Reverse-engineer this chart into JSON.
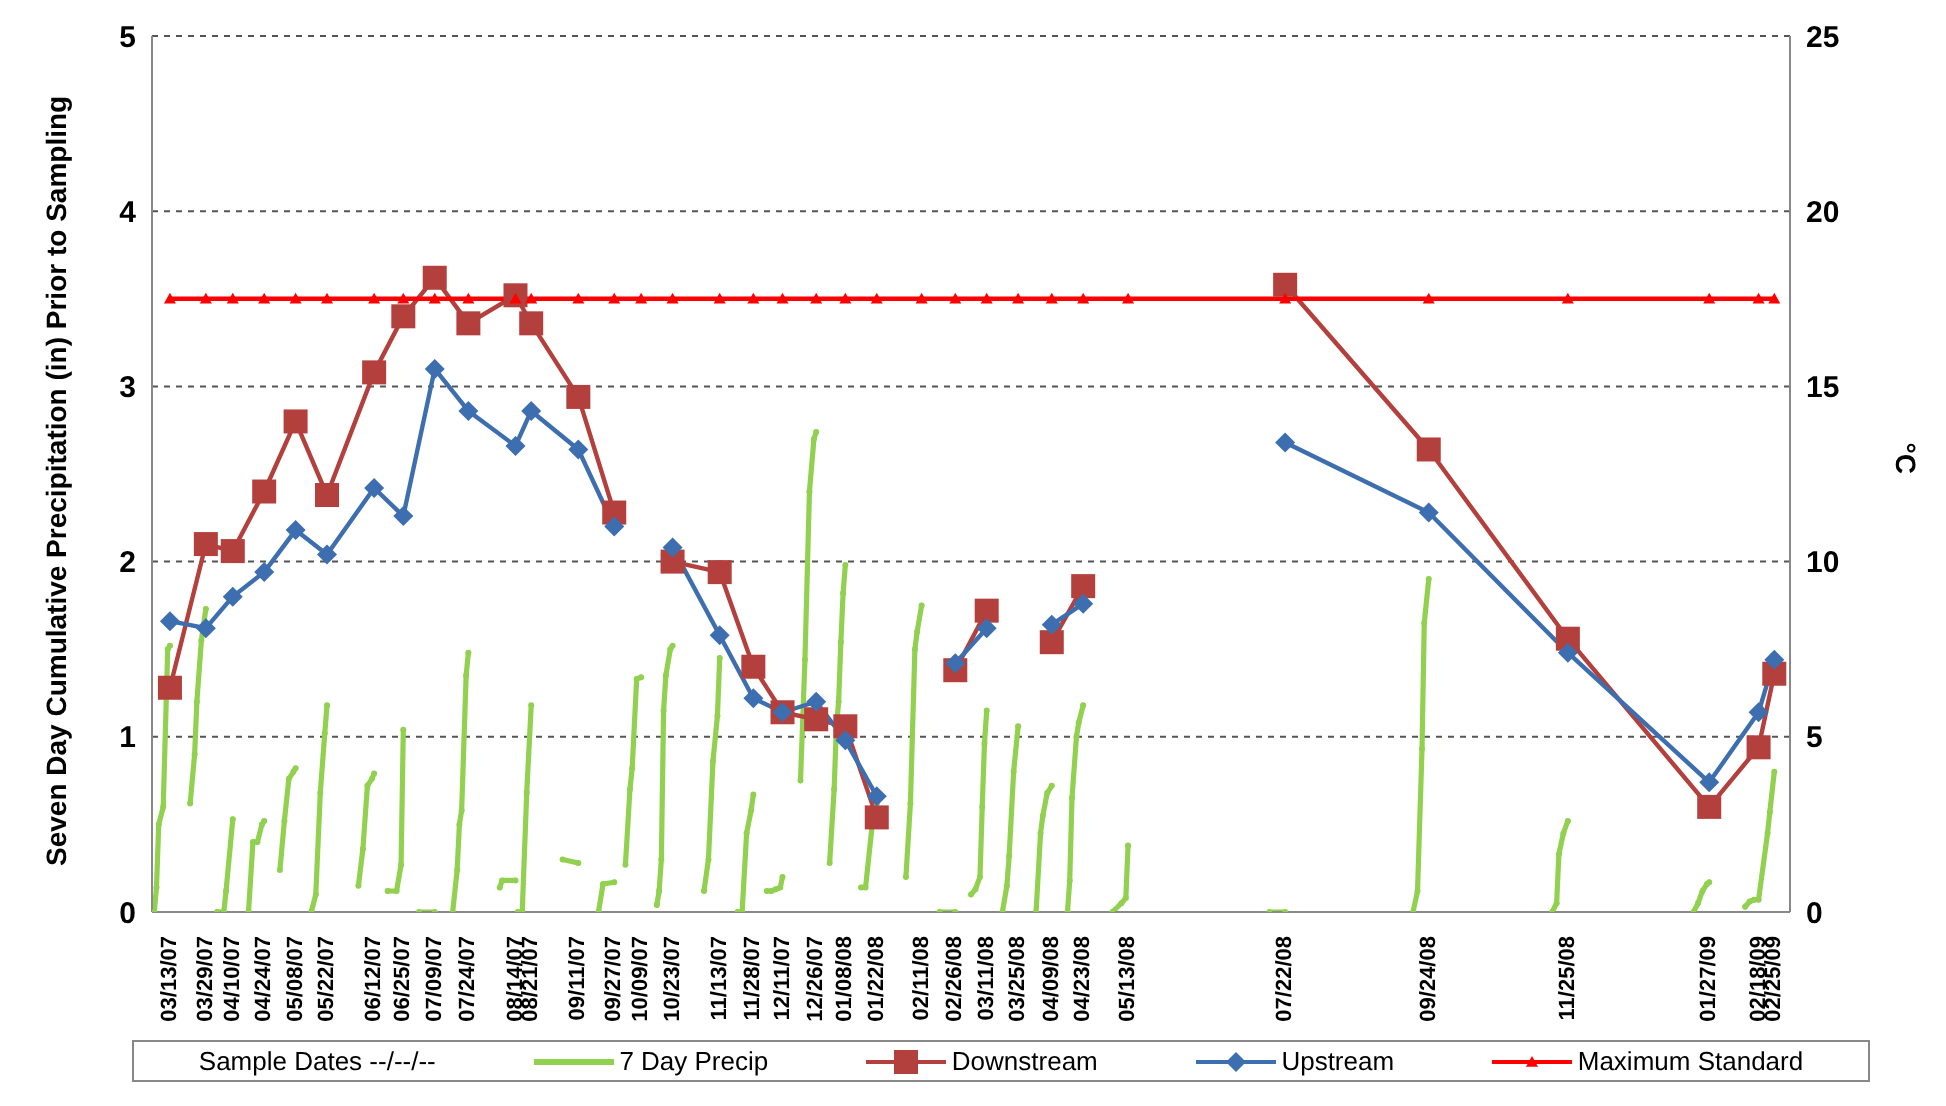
{
  "chart_data": {
    "type": "line",
    "ylabel": "Seven Day Cumulative Precipitation (in) Prior to Sampling",
    "y2label": "°C",
    "xlabel": "Sample Dates --/--/--",
    "x": [
      "2007-03-13",
      "2007-03-29",
      "2007-04-10",
      "2007-04-24",
      "2007-05-08",
      "2007-05-22",
      "2007-06-12",
      "2007-06-25",
      "2007-07-09",
      "2007-07-24",
      "2007-08-14",
      "2007-08-21",
      "2007-09-11",
      "2007-09-27",
      "2007-10-09",
      "2007-10-23",
      "2007-11-13",
      "2007-11-28",
      "2007-12-11",
      "2007-12-26",
      "2008-01-08",
      "2008-01-22",
      "2008-02-11",
      "2008-02-26",
      "2008-03-11",
      "2008-03-25",
      "2008-04-09",
      "2008-04-23",
      "2008-05-13",
      "2008-07-22",
      "2008-09-24",
      "2008-11-25",
      "2009-01-27",
      "2009-02-18",
      "2009-02-25"
    ],
    "xlim": [
      "2007-03-05",
      "2009-03-04"
    ],
    "xticks": [
      {
        "value": "2007-03-13",
        "label": "03/13/07"
      },
      {
        "value": "2007-03-29",
        "label": "03/29/07"
      },
      {
        "value": "2007-04-10",
        "label": "04/10/07"
      },
      {
        "value": "2007-04-24",
        "label": "04/24/07"
      },
      {
        "value": "2007-05-08",
        "label": "05/08/07"
      },
      {
        "value": "2007-05-22",
        "label": "05/22/07"
      },
      {
        "value": "2007-06-12",
        "label": "06/12/07"
      },
      {
        "value": "2007-06-25",
        "label": "06/25/07"
      },
      {
        "value": "2007-07-09",
        "label": "07/09/07"
      },
      {
        "value": "2007-07-24",
        "label": "07/24/07"
      },
      {
        "value": "2007-08-14",
        "label": "08/14/07"
      },
      {
        "value": "2007-08-21",
        "label": "08/21/07"
      },
      {
        "value": "2007-09-11",
        "label": "09/11/07"
      },
      {
        "value": "2007-09-27",
        "label": "09/27/07"
      },
      {
        "value": "2007-10-09",
        "label": "10/09/07"
      },
      {
        "value": "2007-10-23",
        "label": "10/23/07"
      },
      {
        "value": "2007-11-13",
        "label": "11/13/07"
      },
      {
        "value": "2007-11-28",
        "label": "11/28/07"
      },
      {
        "value": "2007-12-11",
        "label": "12/11/07"
      },
      {
        "value": "2007-12-26",
        "label": "12/26/07"
      },
      {
        "value": "2008-01-08",
        "label": "01/08/08"
      },
      {
        "value": "2008-01-22",
        "label": "01/22/08"
      },
      {
        "value": "2008-02-11",
        "label": "02/11/08"
      },
      {
        "value": "2008-02-26",
        "label": "02/26/08"
      },
      {
        "value": "2008-03-11",
        "label": "03/11/08"
      },
      {
        "value": "2008-03-25",
        "label": "03/25/08"
      },
      {
        "value": "2008-04-09",
        "label": "04/09/08"
      },
      {
        "value": "2008-04-23",
        "label": "04/23/08"
      },
      {
        "value": "2008-05-13",
        "label": "05/13/08"
      },
      {
        "value": "2008-07-22",
        "label": "07/22/08"
      },
      {
        "value": "2008-09-24",
        "label": "09/24/08"
      },
      {
        "value": "2008-11-25",
        "label": "11/25/08"
      },
      {
        "value": "2009-01-27",
        "label": "01/27/09"
      },
      {
        "value": "2009-02-18",
        "label": "02/18/09"
      },
      {
        "value": "2009-02-25",
        "label": "02/25/09"
      }
    ],
    "ylim": [
      0,
      5
    ],
    "yticks": [
      0,
      1,
      2,
      3,
      4,
      5
    ],
    "y2lim": [
      0,
      25
    ],
    "y2ticks": [
      0,
      5,
      10,
      15,
      20,
      25
    ],
    "grid": "y",
    "legend": "bottom",
    "series": [
      {
        "name": "7 Day Precip",
        "color": "#92d050",
        "marker": "circle",
        "x": [
          "2007-03-06",
          "2007-03-07",
          "2007-03-08",
          "2007-03-10",
          "2007-03-12",
          "2007-03-13",
          "2007-03-13T12:00",
          "2007-03-22",
          "2007-03-24",
          "2007-03-25",
          "2007-03-27",
          "2007-03-29",
          "2007-03-29T12:00",
          "2007-04-03",
          "2007-04-06",
          "2007-04-07",
          "2007-04-10",
          "2007-04-10T12:00",
          "2007-04-17",
          "2007-04-19",
          "2007-04-21",
          "2007-04-23",
          "2007-04-24",
          "2007-04-24T12:00",
          "2007-05-01",
          "2007-05-03",
          "2007-05-05",
          "2007-05-07",
          "2007-05-08",
          "2007-05-08T12:00",
          "2007-05-15",
          "2007-05-17",
          "2007-05-19",
          "2007-05-21",
          "2007-05-22",
          "2007-05-22T12:00",
          "2007-06-05",
          "2007-06-07",
          "2007-06-09",
          "2007-06-11",
          "2007-06-12",
          "2007-06-12T12:00",
          "2007-06-18",
          "2007-06-22",
          "2007-06-24",
          "2007-06-25",
          "2007-06-25T12:00",
          "2007-07-02",
          "2007-07-09",
          "2007-07-09T12:00",
          "2007-07-17",
          "2007-07-19",
          "2007-07-20",
          "2007-07-21",
          "2007-07-23",
          "2007-07-24",
          "2007-07-24T12:00",
          "2007-08-07",
          "2007-08-08",
          "2007-08-14",
          "2007-08-14T12:00",
          "2007-08-15",
          "2007-08-17",
          "2007-08-19",
          "2007-08-21",
          "2007-08-21T12:00",
          "2007-09-04",
          "2007-09-11",
          "2007-09-11T12:00",
          "2007-09-20",
          "2007-09-22",
          "2007-09-27",
          "2007-09-27T12:00",
          "2007-10-02",
          "2007-10-04",
          "2007-10-05",
          "2007-10-07",
          "2007-10-09",
          "2007-10-09T12:00",
          "2007-10-16",
          "2007-10-17",
          "2007-10-18",
          "2007-10-19",
          "2007-10-20",
          "2007-10-22",
          "2007-10-23",
          "2007-10-23T12:00",
          "2007-11-06",
          "2007-11-08",
          "2007-11-10",
          "2007-11-12",
          "2007-11-13",
          "2007-11-13T12:00",
          "2007-11-21",
          "2007-11-23",
          "2007-11-25",
          "2007-11-27",
          "2007-11-28",
          "2007-11-28T12:00",
          "2007-12-04",
          "2007-12-06",
          "2007-12-08",
          "2007-12-10",
          "2007-12-11",
          "2007-12-11T12:00",
          "2007-12-19",
          "2007-12-21",
          "2007-12-23",
          "2007-12-25",
          "2007-12-26",
          "2007-12-26T12:00",
          "2008-01-01",
          "2008-01-03",
          "2008-01-04",
          "2008-01-05",
          "2008-01-06",
          "2008-01-07",
          "2008-01-08",
          "2008-01-08T12:00",
          "2008-01-15",
          "2008-01-17",
          "2008-01-20",
          "2008-01-22",
          "2008-01-22T12:00",
          "2008-02-04",
          "2008-02-06",
          "2008-02-08",
          "2008-02-09",
          "2008-02-11",
          "2008-02-11T12:00",
          "2008-02-19",
          "2008-02-26",
          "2008-02-26T12:00",
          "2008-03-04",
          "2008-03-06",
          "2008-03-08",
          "2008-03-09",
          "2008-03-10",
          "2008-03-11",
          "2008-03-11T12:00",
          "2008-03-18",
          "2008-03-20",
          "2008-03-21",
          "2008-03-23",
          "2008-03-25",
          "2008-03-25T12:00",
          "2008-04-02",
          "2008-04-04",
          "2008-04-05",
          "2008-04-07",
          "2008-04-09",
          "2008-04-09T12:00",
          "2008-04-16",
          "2008-04-17",
          "2008-04-18",
          "2008-04-20",
          "2008-04-21",
          "2008-04-23",
          "2008-04-23T12:00",
          "2008-05-06",
          "2008-05-10",
          "2008-05-12",
          "2008-05-13",
          "2008-05-13T12:00",
          "2008-07-15",
          "2008-07-22",
          "2008-07-22T12:00",
          "2008-09-17",
          "2008-09-19",
          "2008-09-21",
          "2008-09-22",
          "2008-09-24",
          "2008-09-24T12:00",
          "2008-11-18",
          "2008-11-20",
          "2008-11-21",
          "2008-11-23",
          "2008-11-25",
          "2008-11-25T12:00",
          "2009-01-20",
          "2009-01-22",
          "2009-01-24",
          "2009-01-26",
          "2009-01-27",
          "2009-01-27T12:00",
          "2009-02-12",
          "2009-02-14",
          "2009-02-16",
          "2009-02-18",
          "2009-02-22",
          "2009-02-23",
          "2009-02-25"
        ],
        "values": [
          0,
          0.14,
          0.5,
          0.6,
          1.5,
          1.52,
          null,
          0.62,
          0.9,
          1.2,
          1.55,
          1.73,
          null,
          0,
          0,
          0.12,
          0.53,
          null,
          0,
          0.4,
          0.4,
          0.5,
          0.52,
          null,
          0.24,
          0.52,
          0.76,
          0.8,
          0.82,
          null,
          0,
          0.1,
          0.68,
          1.02,
          1.18,
          null,
          0.15,
          0.36,
          0.72,
          0.76,
          0.79,
          null,
          0.12,
          0.12,
          0.27,
          1.04,
          null,
          0,
          0,
          null,
          0,
          0.24,
          0.5,
          0.58,
          1.35,
          1.48,
          null,
          0.14,
          0.18,
          0.18,
          null,
          0,
          0,
          0.68,
          1.18,
          null,
          0.3,
          0.28,
          null,
          0,
          0.16,
          0.17,
          null,
          0.27,
          0.7,
          0.82,
          1.33,
          1.34,
          null,
          0.04,
          0.12,
          0.3,
          1.15,
          1.35,
          1.5,
          1.52,
          null,
          0.12,
          0.3,
          0.86,
          1.12,
          1.45,
          null,
          0,
          0,
          0.45,
          0.58,
          0.67,
          null,
          0.12,
          0.12,
          0.13,
          0.14,
          0.2,
          null,
          0.75,
          1.44,
          2.4,
          2.7,
          2.74,
          null,
          0.28,
          0.7,
          1.05,
          1.2,
          1.54,
          1.82,
          1.98,
          null,
          0.14,
          0.14,
          0.5,
          0.62,
          null,
          0.2,
          0.62,
          1.5,
          1.6,
          1.75,
          null,
          0,
          0,
          null,
          0.1,
          0.13,
          0.2,
          0.6,
          0.96,
          1.15,
          null,
          0,
          0.15,
          0.32,
          0.8,
          1.06,
          null,
          0,
          0.45,
          0.55,
          0.68,
          0.72,
          null,
          0,
          0.18,
          0.65,
          1.0,
          1.08,
          1.18,
          null,
          0,
          0.05,
          0.08,
          0.38,
          null,
          0,
          0,
          null,
          0,
          0.12,
          0.93,
          1.65,
          1.9,
          null,
          0,
          0.05,
          0.33,
          0.45,
          0.52,
          null,
          0,
          0.05,
          0.12,
          0.16,
          0.17,
          null,
          0.03,
          0.06,
          0.07,
          0.07,
          0.45,
          0.57,
          0.8
        ]
      },
      {
        "name": "Downstream",
        "color": "#b3403c",
        "marker": "square",
        "axis": "y2",
        "values": [
          6.4,
          10.5,
          10.3,
          12.0,
          14.0,
          11.9,
          15.4,
          17.0,
          18.1,
          16.8,
          17.6,
          16.8,
          14.7,
          11.4,
          null,
          10.0,
          9.7,
          7.0,
          5.7,
          5.5,
          5.3,
          2.7,
          null,
          6.9,
          8.6,
          null,
          7.7,
          9.3,
          null,
          17.9,
          13.2,
          7.8,
          3.0,
          4.7,
          6.8
        ]
      },
      {
        "name": "Upstream",
        "color": "#3d6fb0",
        "marker": "diamond",
        "axis": "y2",
        "values": [
          8.3,
          8.1,
          9.0,
          9.7,
          10.9,
          10.2,
          12.1,
          11.3,
          15.5,
          14.3,
          13.3,
          14.3,
          13.2,
          11.0,
          null,
          10.4,
          7.9,
          6.1,
          5.7,
          6.0,
          4.9,
          3.3,
          null,
          7.1,
          8.1,
          null,
          8.2,
          8.8,
          null,
          13.4,
          11.4,
          7.4,
          3.7,
          5.7,
          7.2
        ]
      },
      {
        "name": "Maximum Standard",
        "color": "#ff0000",
        "marker": "triangle",
        "axis": "y2",
        "values": [
          17.5,
          17.5,
          17.5,
          17.5,
          17.5,
          17.5,
          17.5,
          17.5,
          17.5,
          17.5,
          17.5,
          17.5,
          17.5,
          17.5,
          17.5,
          17.5,
          17.5,
          17.5,
          17.5,
          17.5,
          17.5,
          17.5,
          17.5,
          17.5,
          17.5,
          17.5,
          17.5,
          17.5,
          17.5,
          17.5,
          17.5,
          17.5,
          17.5,
          17.5,
          17.5
        ]
      }
    ]
  }
}
